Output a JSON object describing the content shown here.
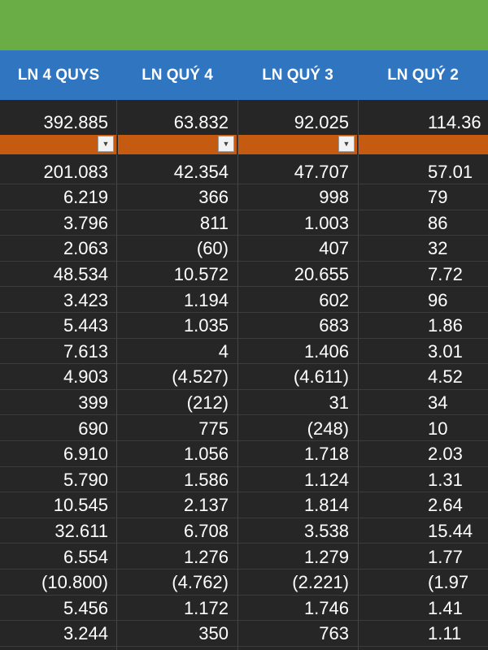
{
  "colors": {
    "top_bar": "#6aac45",
    "header_bg": "#2f75c0",
    "filter_bg": "#c55a11",
    "grid_bg": "#262626"
  },
  "headers": [
    "LN 4 QUYS",
    "LN QUÝ 4",
    "LN QUÝ 3",
    "LN QUÝ 2"
  ],
  "summary": [
    "392.885",
    "63.832",
    "92.025",
    "114.36"
  ],
  "filter_icon": "dropdown-arrow-icon",
  "rows": [
    [
      "201.083",
      "42.354",
      "47.707",
      "57.01"
    ],
    [
      "6.219",
      "366",
      "998",
      "79"
    ],
    [
      "3.796",
      "811",
      "1.003",
      "86"
    ],
    [
      "2.063",
      "(60)",
      "407",
      "32"
    ],
    [
      "48.534",
      "10.572",
      "20.655",
      "7.72"
    ],
    [
      "3.423",
      "1.194",
      "602",
      "96"
    ],
    [
      "5.443",
      "1.035",
      "683",
      "1.86"
    ],
    [
      "7.613",
      "4",
      "1.406",
      "3.01"
    ],
    [
      "4.903",
      "(4.527)",
      "(4.611)",
      "4.52"
    ],
    [
      "399",
      "(212)",
      "31",
      "34"
    ],
    [
      "690",
      "775",
      "(248)",
      "10"
    ],
    [
      "6.910",
      "1.056",
      "1.718",
      "2.03"
    ],
    [
      "5.790",
      "1.586",
      "1.124",
      "1.31"
    ],
    [
      "10.545",
      "2.137",
      "1.814",
      "2.64"
    ],
    [
      "32.611",
      "6.708",
      "3.538",
      "15.44"
    ],
    [
      "6.554",
      "1.276",
      "1.279",
      "1.77"
    ],
    [
      "(10.800)",
      "(4.762)",
      "(2.221)",
      "(1.97"
    ],
    [
      "5.456",
      "1.172",
      "1.746",
      "1.41"
    ],
    [
      "3.244",
      "350",
      "763",
      "1.11"
    ]
  ]
}
